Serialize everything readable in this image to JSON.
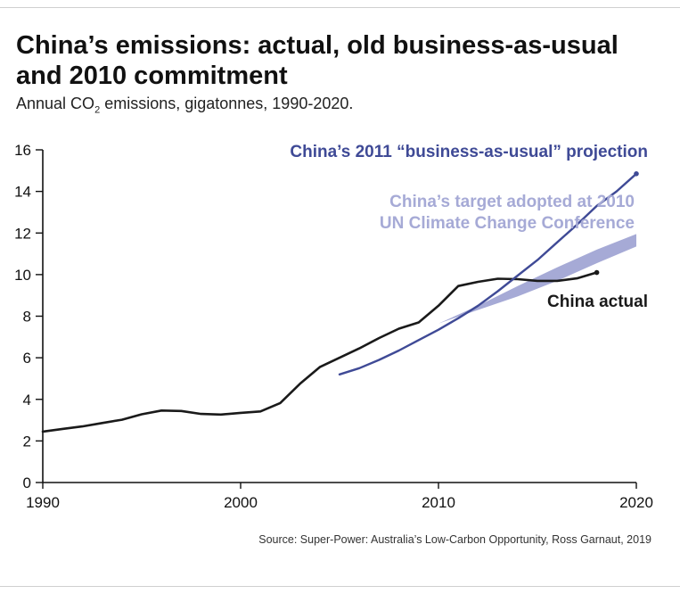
{
  "header": {
    "title": "China’s emissions: actual, old business-as-usual and 2010 commitment",
    "subtitle_pre": "Annual CO",
    "subtitle_sub": "2",
    "subtitle_post": " emissions, gigatonnes, 1990-2020."
  },
  "source": "Source:  Super-Power: Australia’s Low-Carbon Opportunity, Ross Garnaut, 2019",
  "colors": {
    "actual": "#1a1a1a",
    "projection": "#3f4a96",
    "target": "#a6aad6",
    "axis": "#111111"
  },
  "chart_data": {
    "type": "line",
    "title": "China’s emissions: actual, old business-as-usual and 2010 commitment",
    "xlabel": "",
    "ylabel": "Annual CO2 emissions, gigatonnes",
    "xlim": [
      1990,
      2020
    ],
    "ylim": [
      0,
      16
    ],
    "xticks": [
      1990,
      2000,
      2010,
      2020
    ],
    "yticks": [
      0,
      2,
      4,
      6,
      8,
      10,
      12,
      14,
      16
    ],
    "grid": false,
    "series": [
      {
        "name": "China actual",
        "label": "China actual",
        "x": [
          1990,
          1991,
          1992,
          1993,
          1994,
          1995,
          1996,
          1997,
          1998,
          1999,
          2000,
          2001,
          2002,
          2003,
          2004,
          2005,
          2006,
          2007,
          2008,
          2009,
          2010,
          2011,
          2012,
          2013,
          2014,
          2015,
          2016,
          2017,
          2018
        ],
        "y": [
          2.45,
          2.58,
          2.7,
          2.86,
          3.02,
          3.28,
          3.46,
          3.44,
          3.3,
          3.27,
          3.35,
          3.42,
          3.82,
          4.75,
          5.55,
          6.0,
          6.45,
          6.95,
          7.4,
          7.7,
          8.5,
          9.45,
          9.65,
          9.8,
          9.78,
          9.7,
          9.7,
          9.82,
          10.1
        ]
      },
      {
        "name": "China’s 2011 “business-as-usual” projection",
        "label": "China’s 2011 “business-as-usual” projection",
        "x": [
          2005,
          2006,
          2007,
          2008,
          2009,
          2010,
          2011,
          2012,
          2013,
          2014,
          2015,
          2016,
          2017,
          2018,
          2019,
          2020
        ],
        "y": [
          5.2,
          5.5,
          5.9,
          6.35,
          6.85,
          7.35,
          7.9,
          8.5,
          9.2,
          9.95,
          10.7,
          11.55,
          12.4,
          13.3,
          14.0,
          14.85
        ]
      },
      {
        "name": "China’s target adopted at 2010 UN Climate Change Conference",
        "label_lines": [
          "China’s target adopted at 2010",
          "UN Climate Change Conference"
        ],
        "type": "band",
        "x": [
          2010,
          2012,
          2014,
          2016,
          2018,
          2020
        ],
        "lower": [
          7.65,
          8.3,
          8.95,
          9.7,
          10.55,
          11.35
        ],
        "upper": [
          7.65,
          8.5,
          9.45,
          10.35,
          11.2,
          11.95
        ]
      }
    ]
  }
}
